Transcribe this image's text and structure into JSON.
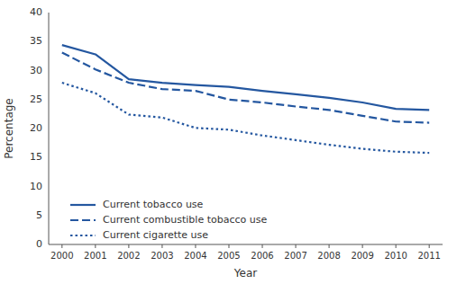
{
  "chart_data": {
    "type": "line",
    "x": [
      2000,
      2001,
      2002,
      2003,
      2004,
      2005,
      2006,
      2007,
      2008,
      2009,
      2010,
      2011
    ],
    "series": [
      {
        "name": "Current tobacco use",
        "color": "#2457a0",
        "line_style": "solid",
        "values": [
          34.4,
          32.8,
          28.5,
          27.9,
          27.5,
          27.2,
          26.5,
          25.9,
          25.3,
          24.5,
          23.4,
          23.2
        ]
      },
      {
        "name": "Current combustible tobacco use",
        "color": "#2457a0",
        "line_style": "dashed",
        "values": [
          33.1,
          30.2,
          27.9,
          26.8,
          26.5,
          25.0,
          24.5,
          23.8,
          23.2,
          22.2,
          21.2,
          21.0
        ]
      },
      {
        "name": "Current cigarette use",
        "color": "#2457a0",
        "line_style": "dotted",
        "values": [
          27.9,
          26.1,
          22.4,
          21.9,
          20.1,
          19.8,
          18.8,
          18.0,
          17.2,
          16.5,
          16.0,
          15.8
        ]
      }
    ],
    "xlim": [
      1999.6,
      2011.4
    ],
    "xticks": [
      2000,
      2001,
      2002,
      2003,
      2004,
      2005,
      2006,
      2007,
      2008,
      2009,
      2010,
      2011
    ],
    "ylim": [
      0,
      40
    ],
    "yticks": [
      0,
      5,
      10,
      15,
      20,
      25,
      30,
      35,
      40
    ],
    "xlabel": "Year",
    "ylabel": "Percentage",
    "legend": "lower left",
    "grid": false
  }
}
